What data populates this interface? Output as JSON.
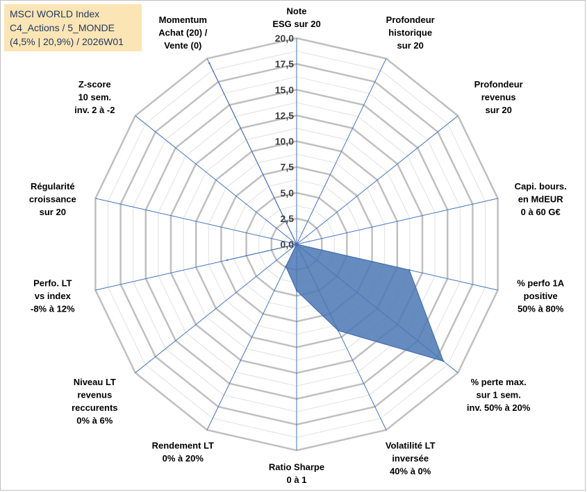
{
  "title": {
    "line1": "MSCI WORLD Index",
    "line2": "C4_Actions / 5_MONDE",
    "line3": "(4,5% | 20,9%) / 2026W01"
  },
  "colors": {
    "fill": "#4a77b4",
    "outline": "#3b67b0",
    "spokes": "#4472c4",
    "grid_major": "#bfbfbf",
    "grid_minor": "#e0e0e0",
    "title_bg": "#fbe5b4"
  },
  "chart_data": {
    "type": "radar",
    "ylim": [
      0,
      20
    ],
    "major_step": 2.5,
    "minor_step": 1.25,
    "tick_labels": [
      "0,0",
      "2,5",
      "5,0",
      "7,5",
      "10,0",
      "12,5",
      "15,0",
      "17,5",
      "20,0"
    ],
    "categories": [
      {
        "lines": [
          "Note",
          "ESG sur 20"
        ]
      },
      {
        "lines": [
          "Profondeur",
          "historique",
          "sur 20"
        ]
      },
      {
        "lines": [
          "Profondeur",
          "revenus",
          "sur 20"
        ]
      },
      {
        "lines": [
          "Capi. bours.",
          "en MdEUR",
          "0 à 60 G€"
        ]
      },
      {
        "lines": [
          "% perfo 1A",
          "positive",
          "50% à 80%"
        ]
      },
      {
        "lines": [
          "% perte max.",
          "sur 1 sem.",
          "inv. 50% à 20%"
        ]
      },
      {
        "lines": [
          "Volatilité LT",
          "inversée",
          "40% à 0%"
        ]
      },
      {
        "lines": [
          "Ratio Sharpe",
          "0 à 1"
        ]
      },
      {
        "lines": [
          "Rendement LT",
          "0% à 20%"
        ]
      },
      {
        "lines": [
          "Niveau LT",
          "revenus",
          "reccurents",
          "0% à 6%"
        ]
      },
      {
        "lines": [
          "Perfo. LT",
          "vs index",
          "-8% à 12%"
        ]
      },
      {
        "lines": [
          "Régularité",
          "croissance",
          "sur 20"
        ]
      },
      {
        "lines": [
          "Z-score",
          "10 sem.",
          "inv. 2 à -2"
        ]
      },
      {
        "lines": [
          "Momentum",
          "Achat (20) /",
          "Vente (0)"
        ]
      }
    ],
    "series": [
      {
        "name": "MSCI WORLD Index",
        "values": [
          0,
          0,
          0,
          0,
          11.2,
          18.2,
          9.3,
          4.5,
          2.4,
          0,
          6.9,
          0,
          0,
          19.5
        ]
      }
    ]
  }
}
